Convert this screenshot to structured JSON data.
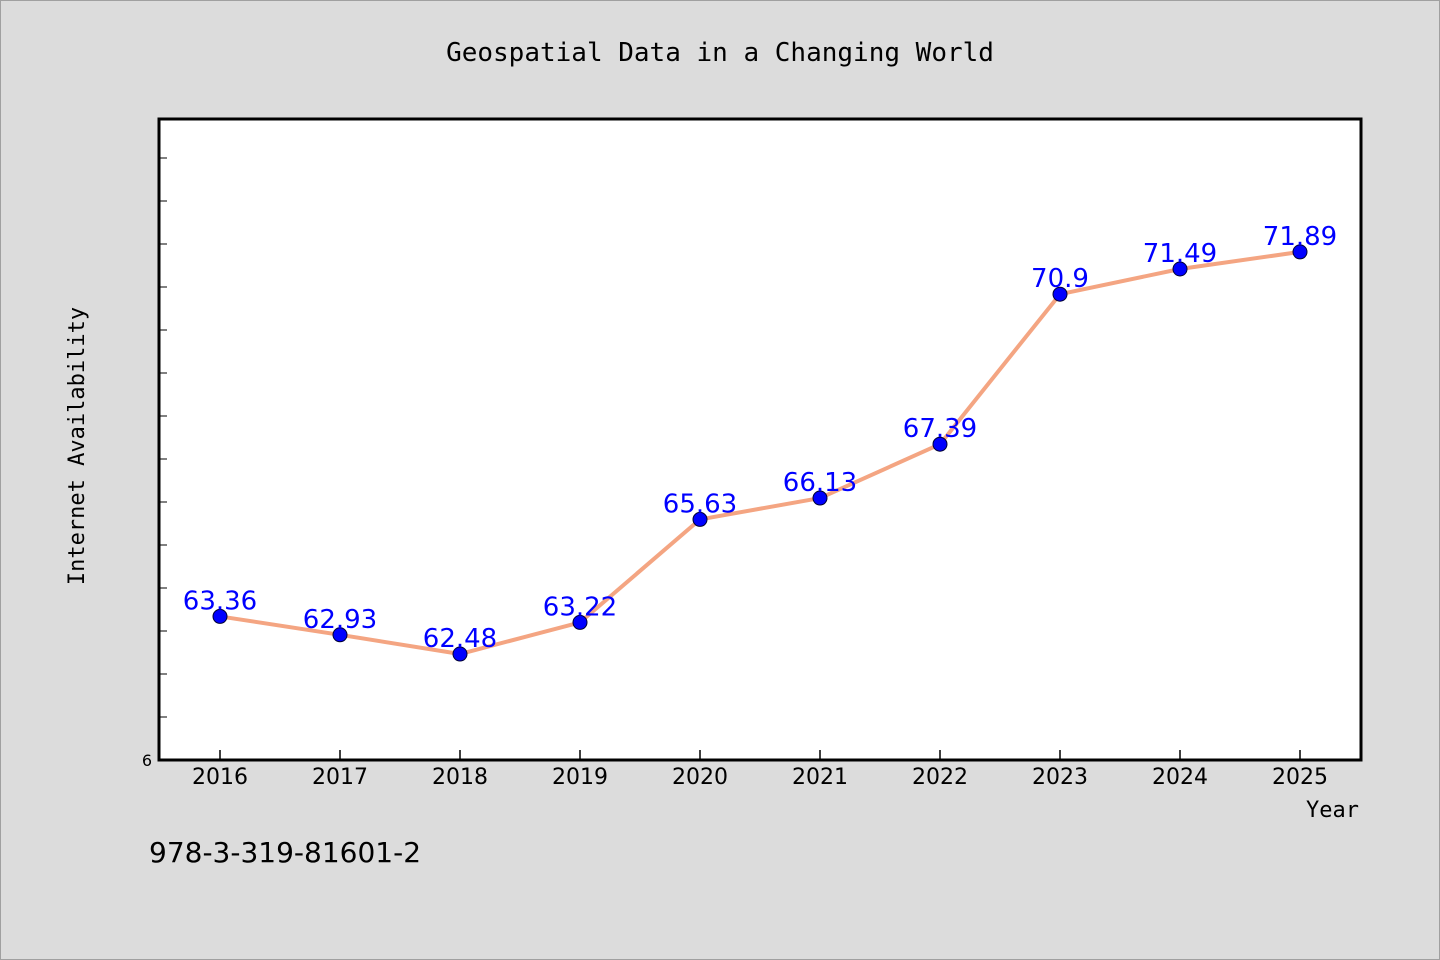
{
  "chart_data": {
    "type": "line",
    "title": "Geospatial Data in a Changing World",
    "xlabel": "Year",
    "ylabel": "Internet Availability",
    "categories": [
      "2016",
      "2017",
      "2018",
      "2019",
      "2020",
      "2021",
      "2022",
      "2023",
      "2024",
      "2025"
    ],
    "series": [
      {
        "values": [
          63.36,
          62.93,
          62.48,
          63.22,
          65.63,
          66.13,
          67.39,
          70.9,
          71.49,
          71.89
        ],
        "data_labels": [
          "63.36",
          "62.93",
          "62.48",
          "63.22",
          "65.63",
          "66.13",
          "67.39",
          "70.9",
          "71.49",
          "71.89"
        ]
      }
    ],
    "ylim": [
      60,
      75
    ],
    "y_tick_label": "6",
    "grid": false,
    "legend": "none",
    "colors": {
      "line": "#f4a582",
      "marker": "#0000ff",
      "label": "#0000ff",
      "plot_bg": "#ffffff",
      "page_bg": "#dcdcdc"
    }
  },
  "footnote": "978-3-319-81601-2"
}
